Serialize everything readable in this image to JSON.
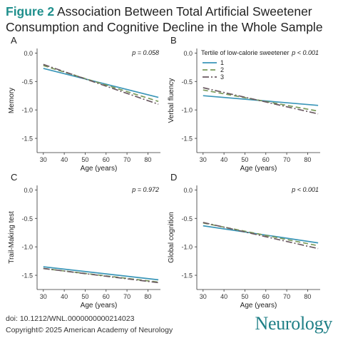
{
  "title": {
    "figure_label": "Figure 2",
    "text": "Association Between Total Artificial Sweetener Consumption and Cognitive Decline in the Whole Sample"
  },
  "colors": {
    "series1": "#3a96b8",
    "series2": "#7a9a5a",
    "series3": "#6b5a62",
    "accent": "#1f8f8c"
  },
  "legend": {
    "title": "Tertile of low-calorie sweetener",
    "items": [
      "1",
      "2",
      "3"
    ]
  },
  "chart_data": [
    {
      "type": "line",
      "panel": "A",
      "xlabel": "Age (years)",
      "ylabel": "Memory",
      "pvalue": "p = 0.058",
      "xlim": [
        27,
        86
      ],
      "ylim": [
        -1.75,
        0.08
      ],
      "xticks": [
        30,
        40,
        50,
        60,
        70,
        80
      ],
      "yticks": [
        0.0,
        -0.5,
        -1.0,
        -1.5
      ],
      "ytick_labels": [
        "0.0",
        "-0.5",
        "-1.0",
        "-1.5"
      ],
      "series": [
        {
          "name": "1",
          "x": [
            30,
            85
          ],
          "y": [
            -0.27,
            -0.78
          ]
        },
        {
          "name": "2",
          "x": [
            30,
            85
          ],
          "y": [
            -0.22,
            -0.85
          ]
        },
        {
          "name": "3",
          "x": [
            30,
            85
          ],
          "y": [
            -0.2,
            -0.9
          ]
        }
      ]
    },
    {
      "type": "line",
      "panel": "B",
      "xlabel": "Age (years)",
      "ylabel": "Verbal fluency",
      "pvalue": "p < 0.001",
      "xlim": [
        27,
        86
      ],
      "ylim": [
        -1.75,
        0.08
      ],
      "xticks": [
        30,
        40,
        50,
        60,
        70,
        80
      ],
      "yticks": [
        0.0,
        -0.5,
        -1.0,
        -1.5
      ],
      "ytick_labels": [
        "0.0",
        "-0.5",
        "-1.0",
        "-1.5"
      ],
      "series": [
        {
          "name": "1",
          "x": [
            30,
            85
          ],
          "y": [
            -0.75,
            -0.92
          ]
        },
        {
          "name": "2",
          "x": [
            30,
            85
          ],
          "y": [
            -0.65,
            -1.02
          ]
        },
        {
          "name": "3",
          "x": [
            30,
            85
          ],
          "y": [
            -0.61,
            -1.07
          ]
        }
      ]
    },
    {
      "type": "line",
      "panel": "C",
      "xlabel": "Age (years)",
      "ylabel": "Trail-Making test",
      "pvalue": "p = 0.972",
      "xlim": [
        27,
        86
      ],
      "ylim": [
        -1.75,
        0.08
      ],
      "xticks": [
        30,
        40,
        50,
        60,
        70,
        80
      ],
      "yticks": [
        0.0,
        -0.5,
        -1.0,
        -1.5
      ],
      "ytick_labels": [
        "0.0",
        "-0.5",
        "-1.0",
        "-1.5"
      ],
      "series": [
        {
          "name": "1",
          "x": [
            30,
            85
          ],
          "y": [
            -1.35,
            -1.58
          ]
        },
        {
          "name": "2",
          "x": [
            30,
            85
          ],
          "y": [
            -1.38,
            -1.62
          ]
        },
        {
          "name": "3",
          "x": [
            30,
            85
          ],
          "y": [
            -1.38,
            -1.63
          ]
        }
      ]
    },
    {
      "type": "line",
      "panel": "D",
      "xlabel": "Age (years)",
      "ylabel": "Global cognition",
      "pvalue": "p < 0.001",
      "xlim": [
        27,
        86
      ],
      "ylim": [
        -1.75,
        0.08
      ],
      "xticks": [
        30,
        40,
        50,
        60,
        70,
        80
      ],
      "yticks": [
        0.0,
        -0.5,
        -1.0,
        -1.5
      ],
      "ytick_labels": [
        "0.0",
        "-0.5",
        "-1.0",
        "-1.5"
      ],
      "series": [
        {
          "name": "1",
          "x": [
            30,
            85
          ],
          "y": [
            -0.63,
            -0.93
          ]
        },
        {
          "name": "2",
          "x": [
            30,
            85
          ],
          "y": [
            -0.58,
            -0.98
          ]
        },
        {
          "name": "3",
          "x": [
            30,
            85
          ],
          "y": [
            -0.57,
            -1.03
          ]
        }
      ]
    }
  ],
  "footer": {
    "doi": "doi: 10.1212/WNL.0000000000214023",
    "copyright": "Copyright© 2025 American Academy of Neurology",
    "logo_text": "Neurology"
  }
}
